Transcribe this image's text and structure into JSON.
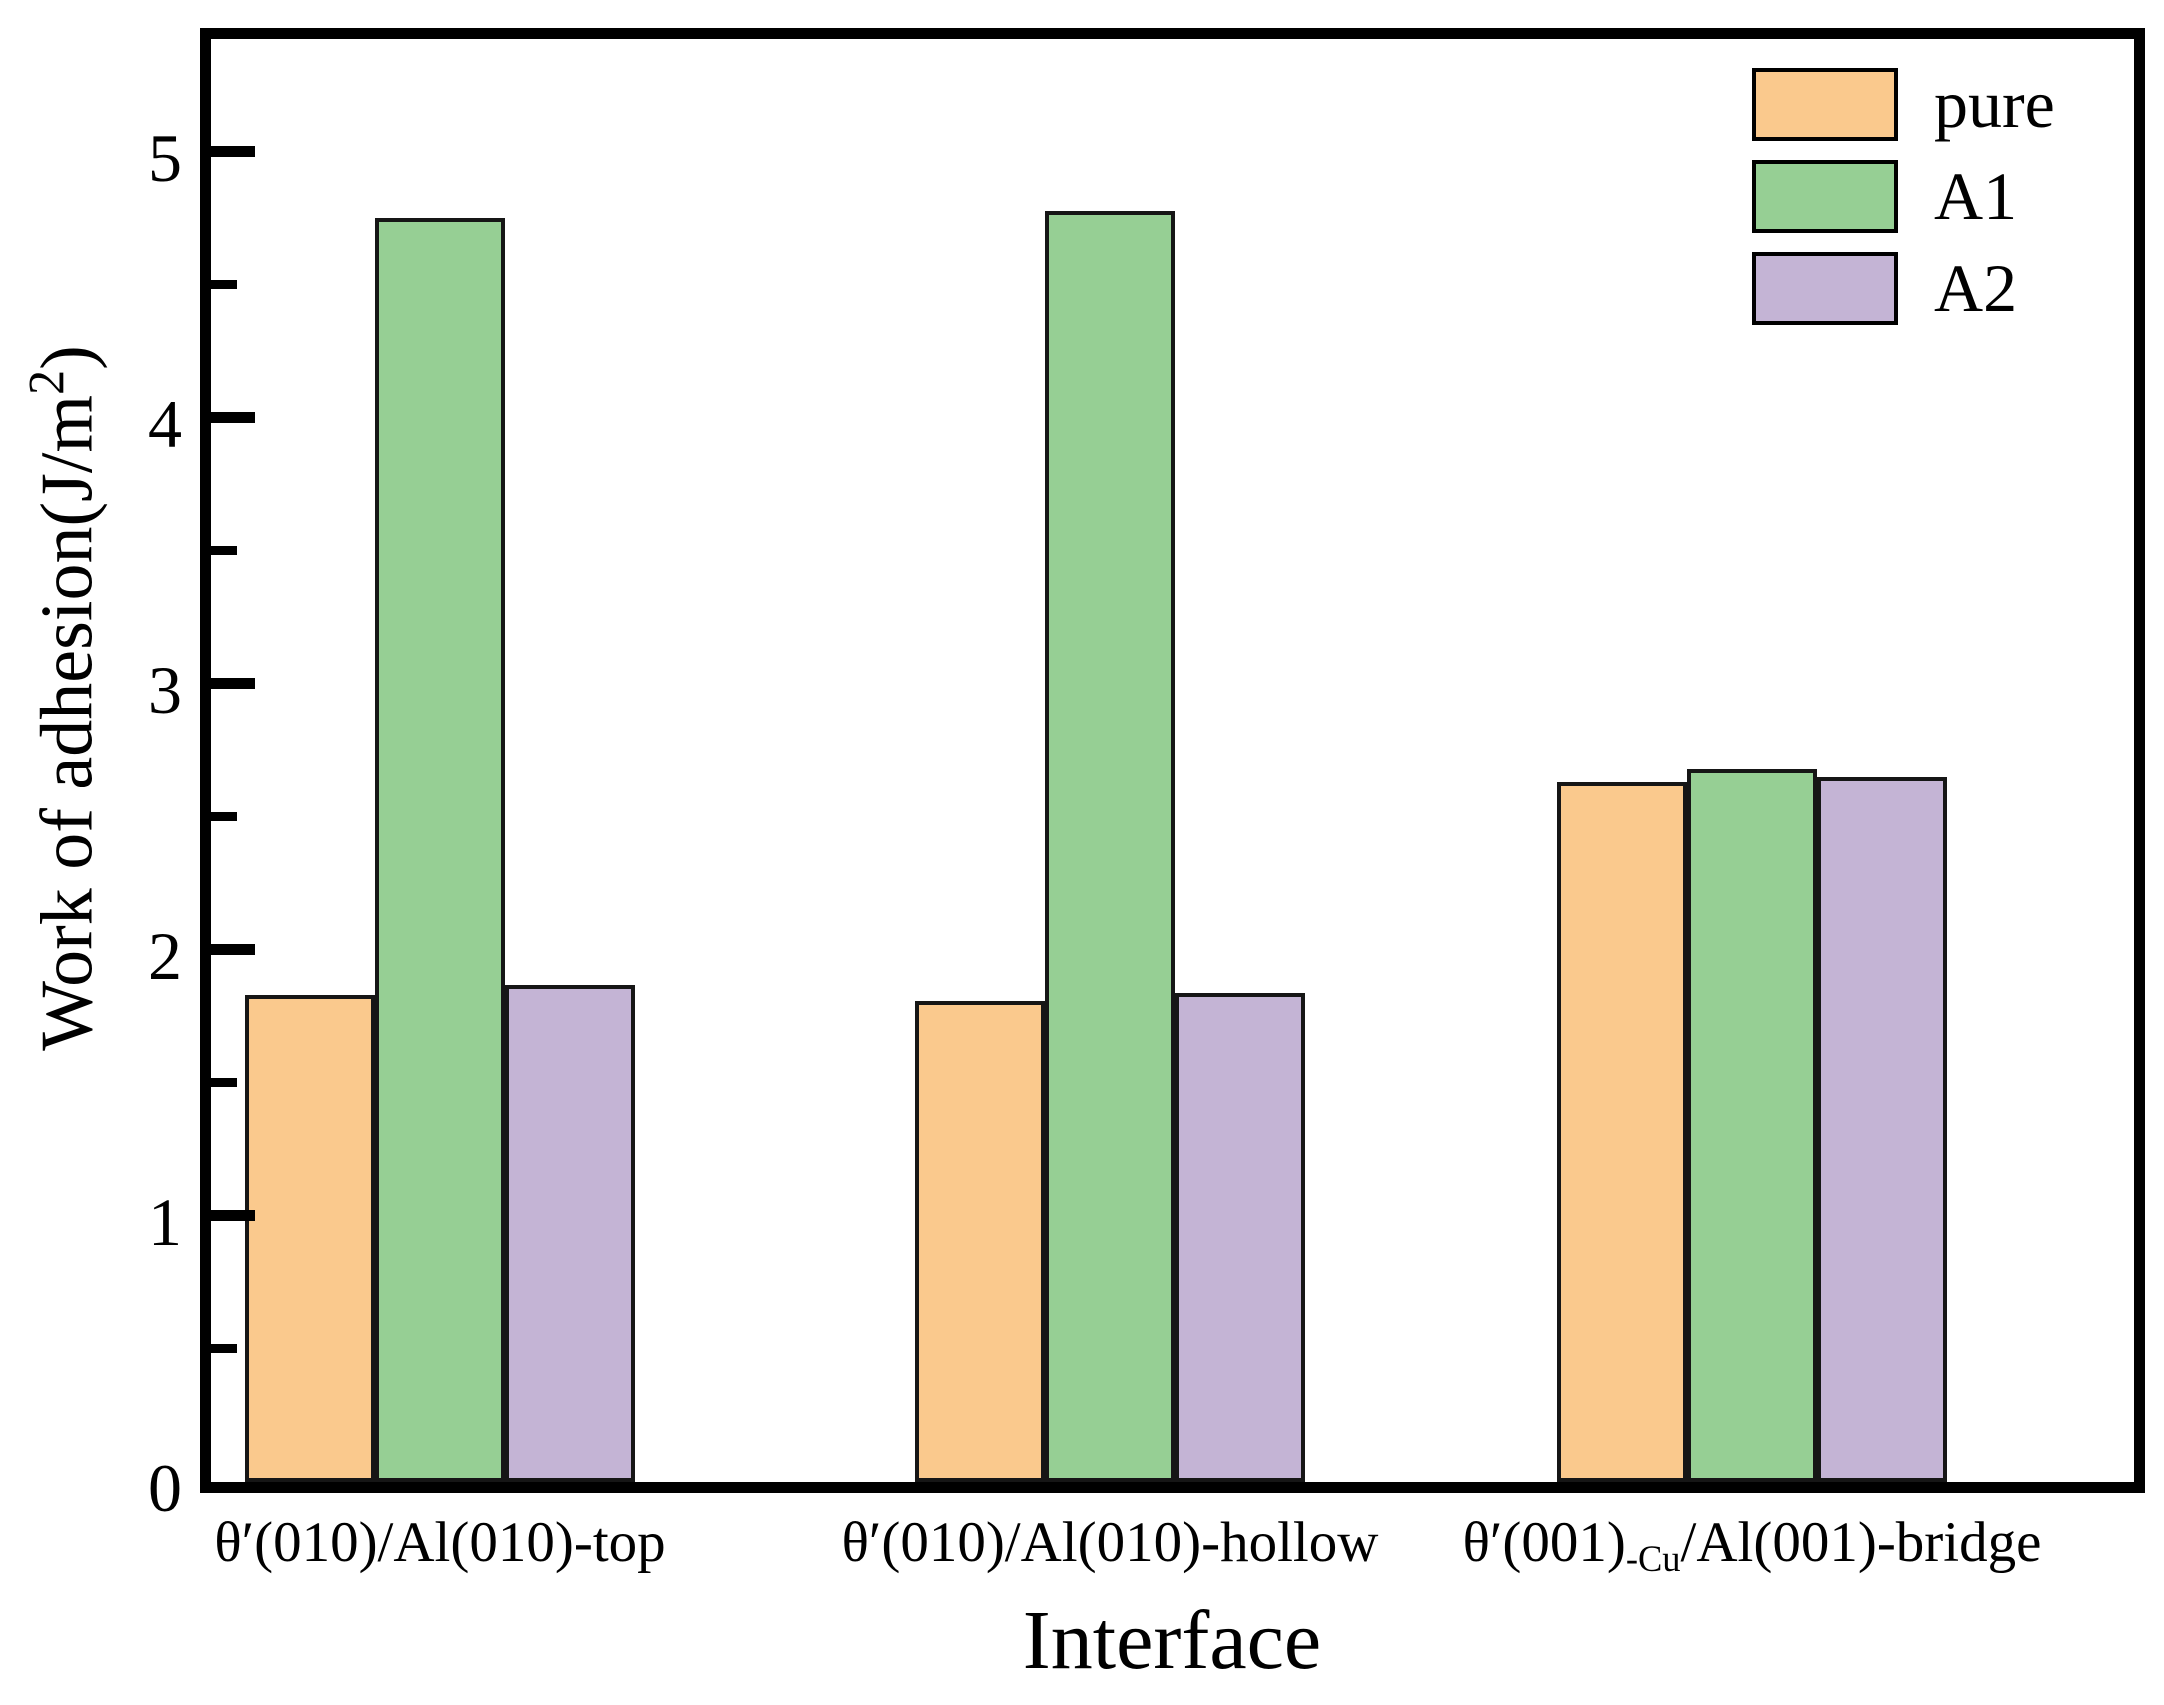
{
  "figure": {
    "background": "#ffffff",
    "axis_color": "#000000",
    "bar_edge_color": "#161616"
  },
  "chart_data": {
    "type": "bar",
    "title": "",
    "xlabel": "Interface",
    "ylabel": "Work of adhesion(J/m2)",
    "ylabel_parts": {
      "pre": "Work of adhesion(J/m",
      "sup": "2",
      "post": ")"
    },
    "categories": [
      "θ′(010)/Al(010)-top",
      "θ′(010)/Al(010)-hollow",
      "θ′(001)-Cu/Al(001)-bridge"
    ],
    "category_parts": [
      {
        "pre": "θ′(010)/Al(010)-top",
        "sub": "",
        "post": ""
      },
      {
        "pre": "θ′(010)/Al(010)-hollow",
        "sub": "",
        "post": ""
      },
      {
        "pre": "θ′(001)",
        "sub": "-Cu",
        "post": "/Al(001)-bridge"
      }
    ],
    "series": [
      {
        "name": "pure",
        "color": "#FAC98D",
        "values": [
          1.83,
          1.81,
          2.63
        ]
      },
      {
        "name": "A1",
        "color": "#96CF94",
        "values": [
          4.75,
          4.78,
          2.68
        ]
      },
      {
        "name": "A2",
        "color": "#C4B4D5",
        "values": [
          1.87,
          1.84,
          2.65
        ]
      }
    ],
    "ylim": [
      0,
      5.45
    ],
    "yticks": [
      0,
      1,
      2,
      3,
      4,
      5
    ],
    "yticks_minor": [
      0.5,
      1.5,
      2.5,
      3.5,
      4.5
    ],
    "grid": false,
    "legend_position": "upper right"
  },
  "legend": {
    "items": [
      {
        "label": "pure",
        "color": "#FAC98D"
      },
      {
        "label": "A1",
        "color": "#96CF94"
      },
      {
        "label": "A2",
        "color": "#C4B4D5"
      }
    ]
  }
}
